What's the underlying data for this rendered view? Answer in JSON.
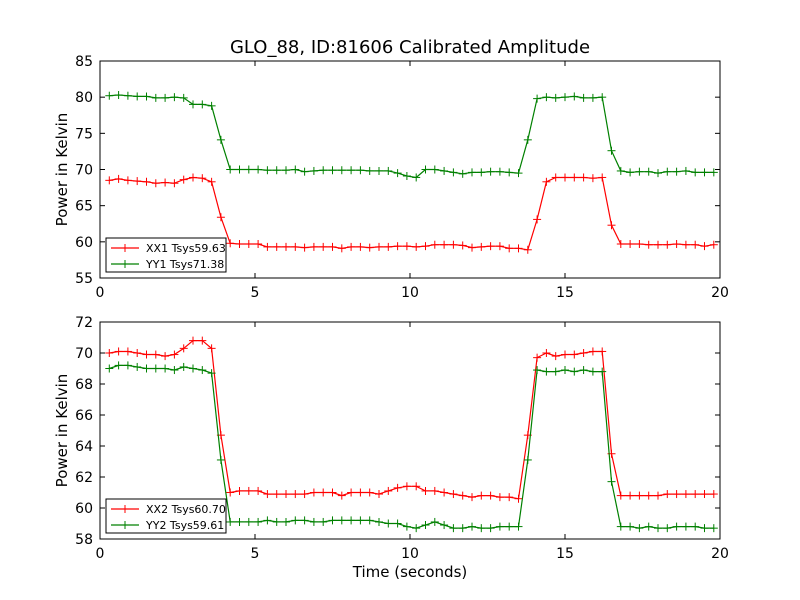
{
  "chart_data": {
    "type": "line",
    "title": "GLO_88, ID:81606 Calibrated Amplitude",
    "xlabel": "Time (seconds)",
    "colors": {
      "red": "#ff0000",
      "green": "#008000"
    },
    "panels": [
      {
        "ylabel": "Power in Kelvin",
        "xlim": [
          0,
          20
        ],
        "ylim": [
          55,
          85
        ],
        "x_ticks": [
          "0",
          "5",
          "10",
          "15",
          "20"
        ],
        "y_ticks": [
          "55",
          "60",
          "65",
          "70",
          "75",
          "80",
          "85"
        ],
        "legend_position": "lower-left",
        "series": [
          {
            "name": "XX1 Tsys59.63",
            "color": "#ff0000",
            "x": [
              0.3,
              0.6,
              0.9,
              1.2,
              1.5,
              1.8,
              2.1,
              2.4,
              2.7,
              3.0,
              3.3,
              3.6,
              3.9,
              4.2,
              4.5,
              4.8,
              5.1,
              5.4,
              5.7,
              6.0,
              6.3,
              6.6,
              6.9,
              7.2,
              7.5,
              7.8,
              8.1,
              8.4,
              8.7,
              9.0,
              9.3,
              9.6,
              9.9,
              10.2,
              10.5,
              10.8,
              11.1,
              11.4,
              11.7,
              12.0,
              12.3,
              12.6,
              12.9,
              13.2,
              13.5,
              13.8,
              14.1,
              14.4,
              14.7,
              15.0,
              15.3,
              15.6,
              15.9,
              16.2,
              16.5,
              16.8,
              17.1,
              17.4,
              17.7,
              18.0,
              18.3,
              18.6,
              18.9,
              19.2,
              19.5,
              19.8
            ],
            "y": [
              68.5,
              68.7,
              68.5,
              68.4,
              68.3,
              68.1,
              68.2,
              68.1,
              68.6,
              68.9,
              68.8,
              68.3,
              63.4,
              59.8,
              59.7,
              59.7,
              59.7,
              59.3,
              59.3,
              59.3,
              59.3,
              59.2,
              59.3,
              59.3,
              59.3,
              59.1,
              59.3,
              59.3,
              59.2,
              59.3,
              59.3,
              59.4,
              59.4,
              59.3,
              59.4,
              59.6,
              59.6,
              59.6,
              59.5,
              59.2,
              59.3,
              59.4,
              59.4,
              59.1,
              59.1,
              58.9,
              63.1,
              68.3,
              68.9,
              68.9,
              68.9,
              68.9,
              68.8,
              68.9,
              62.3,
              59.7,
              59.7,
              59.7,
              59.6,
              59.6,
              59.6,
              59.7,
              59.6,
              59.6,
              59.4,
              59.6
            ]
          },
          {
            "name": "YY1 Tsys71.38",
            "color": "#008000",
            "x": [
              0.3,
              0.6,
              0.9,
              1.2,
              1.5,
              1.8,
              2.1,
              2.4,
              2.7,
              3.0,
              3.3,
              3.6,
              3.9,
              4.2,
              4.5,
              4.8,
              5.1,
              5.4,
              5.7,
              6.0,
              6.3,
              6.6,
              6.9,
              7.2,
              7.5,
              7.8,
              8.1,
              8.4,
              8.7,
              9.0,
              9.3,
              9.6,
              9.9,
              10.2,
              10.5,
              10.8,
              11.1,
              11.4,
              11.7,
              12.0,
              12.3,
              12.6,
              12.9,
              13.2,
              13.5,
              13.8,
              14.1,
              14.4,
              14.7,
              15.0,
              15.3,
              15.6,
              15.9,
              16.2,
              16.5,
              16.8,
              17.1,
              17.4,
              17.7,
              18.0,
              18.3,
              18.6,
              18.9,
              19.2,
              19.5,
              19.8
            ],
            "y": [
              80.2,
              80.3,
              80.2,
              80.1,
              80.1,
              79.9,
              79.9,
              80.0,
              79.9,
              79.0,
              79.0,
              78.8,
              74.1,
              70.0,
              70.0,
              70.0,
              70.0,
              69.9,
              69.9,
              69.9,
              70.0,
              69.7,
              69.8,
              69.9,
              69.9,
              69.9,
              69.9,
              69.9,
              69.8,
              69.8,
              69.8,
              69.5,
              69.1,
              68.9,
              70.0,
              70.0,
              69.8,
              69.6,
              69.4,
              69.6,
              69.6,
              69.7,
              69.7,
              69.6,
              69.5,
              74.1,
              79.8,
              80.0,
              79.9,
              80.0,
              80.1,
              79.9,
              79.9,
              80.0,
              72.6,
              69.8,
              69.6,
              69.7,
              69.7,
              69.5,
              69.7,
              69.7,
              69.8,
              69.6,
              69.6,
              69.6
            ]
          }
        ]
      },
      {
        "ylabel": "Power in Kelvin",
        "xlim": [
          0,
          20
        ],
        "ylim": [
          58,
          72
        ],
        "x_ticks": [
          "0",
          "5",
          "10",
          "15",
          "20"
        ],
        "y_ticks": [
          "58",
          "60",
          "62",
          "64",
          "66",
          "68",
          "70",
          "72"
        ],
        "legend_position": "lower-left",
        "series": [
          {
            "name": "XX2 Tsys60.70",
            "color": "#ff0000",
            "x": [
              0.3,
              0.6,
              0.9,
              1.2,
              1.5,
              1.8,
              2.1,
              2.4,
              2.7,
              3.0,
              3.3,
              3.6,
              3.9,
              4.2,
              4.5,
              4.8,
              5.1,
              5.4,
              5.7,
              6.0,
              6.3,
              6.6,
              6.9,
              7.2,
              7.5,
              7.8,
              8.1,
              8.4,
              8.7,
              9.0,
              9.3,
              9.6,
              9.9,
              10.2,
              10.5,
              10.8,
              11.1,
              11.4,
              11.7,
              12.0,
              12.3,
              12.6,
              12.9,
              13.2,
              13.5,
              13.8,
              14.1,
              14.4,
              14.7,
              15.0,
              15.3,
              15.6,
              15.9,
              16.2,
              16.5,
              16.8,
              17.1,
              17.4,
              17.7,
              18.0,
              18.3,
              18.6,
              18.9,
              19.2,
              19.5,
              19.8
            ],
            "y": [
              70.0,
              70.1,
              70.1,
              70.0,
              69.9,
              69.9,
              69.8,
              69.9,
              70.3,
              70.8,
              70.8,
              70.3,
              64.7,
              61.0,
              61.1,
              61.1,
              61.1,
              60.9,
              60.9,
              60.9,
              60.9,
              60.9,
              61.0,
              61.0,
              61.0,
              60.8,
              61.0,
              61.0,
              61.0,
              60.9,
              61.1,
              61.3,
              61.4,
              61.4,
              61.1,
              61.1,
              61.0,
              60.9,
              60.8,
              60.7,
              60.8,
              60.8,
              60.7,
              60.7,
              60.6,
              64.7,
              69.7,
              70.0,
              69.8,
              69.9,
              69.9,
              70.0,
              70.1,
              70.1,
              63.5,
              60.8,
              60.8,
              60.8,
              60.8,
              60.8,
              60.9,
              60.9,
              60.9,
              60.9,
              60.9,
              60.9
            ]
          },
          {
            "name": "YY2 Tsys59.61",
            "color": "#008000",
            "x": [
              0.3,
              0.6,
              0.9,
              1.2,
              1.5,
              1.8,
              2.1,
              2.4,
              2.7,
              3.0,
              3.3,
              3.6,
              3.9,
              4.2,
              4.5,
              4.8,
              5.1,
              5.4,
              5.7,
              6.0,
              6.3,
              6.6,
              6.9,
              7.2,
              7.5,
              7.8,
              8.1,
              8.4,
              8.7,
              9.0,
              9.3,
              9.6,
              9.9,
              10.2,
              10.5,
              10.8,
              11.1,
              11.4,
              11.7,
              12.0,
              12.3,
              12.6,
              12.9,
              13.2,
              13.5,
              13.8,
              14.1,
              14.4,
              14.7,
              15.0,
              15.3,
              15.6,
              15.9,
              16.2,
              16.5,
              16.8,
              17.1,
              17.4,
              17.7,
              18.0,
              18.3,
              18.6,
              18.9,
              19.2,
              19.5,
              19.8
            ],
            "y": [
              69.0,
              69.2,
              69.2,
              69.1,
              69.0,
              69.0,
              69.0,
              68.9,
              69.1,
              69.0,
              68.9,
              68.7,
              63.1,
              59.1,
              59.1,
              59.1,
              59.1,
              59.2,
              59.1,
              59.1,
              59.2,
              59.2,
              59.1,
              59.1,
              59.2,
              59.2,
              59.2,
              59.2,
              59.2,
              59.1,
              59.0,
              59.0,
              58.8,
              58.7,
              58.9,
              59.1,
              58.9,
              58.7,
              58.7,
              58.8,
              58.7,
              58.7,
              58.8,
              58.8,
              58.8,
              63.1,
              68.9,
              68.8,
              68.8,
              68.9,
              68.8,
              68.9,
              68.8,
              68.8,
              61.7,
              58.8,
              58.8,
              58.7,
              58.8,
              58.7,
              58.7,
              58.8,
              58.8,
              58.8,
              58.7,
              58.7
            ]
          }
        ]
      }
    ]
  }
}
